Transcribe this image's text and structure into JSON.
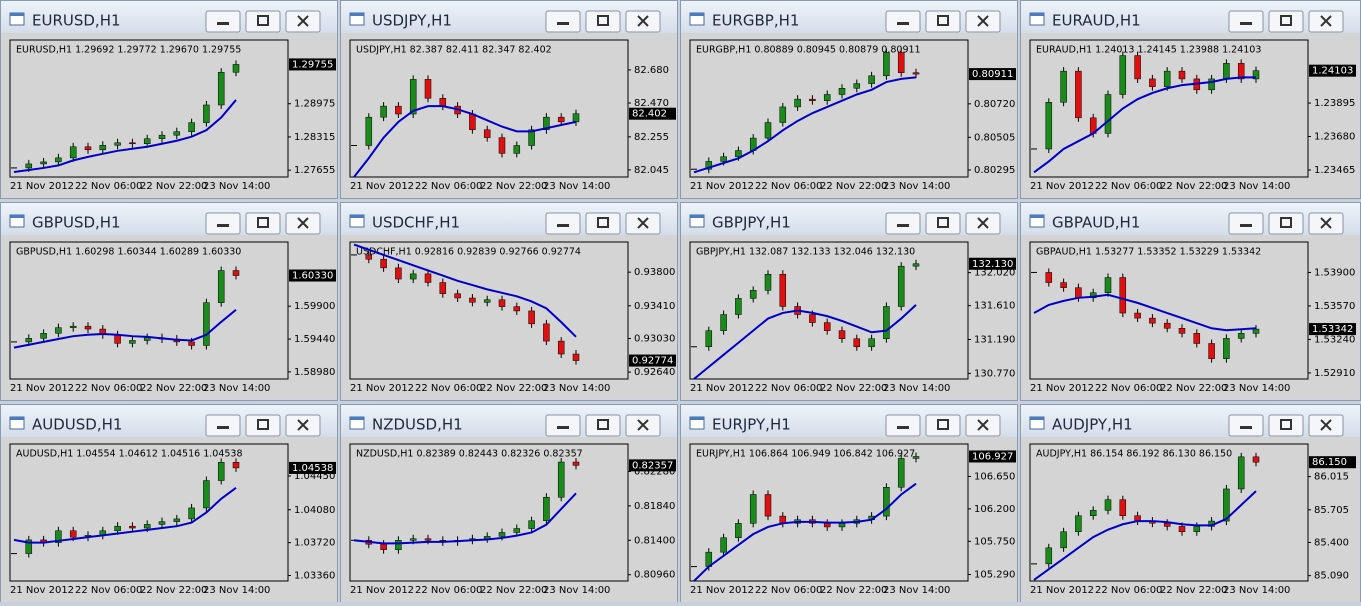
{
  "colors": {
    "up": "#1a8a1a",
    "down": "#e01010",
    "ma": "#0000c8"
  },
  "windows": [
    {
      "title": "EURUSD,H1",
      "info": "EURUSD,H1  1.29692 1.29772 1.29670 1.29755",
      "x_labels": [
        "21 Nov 2012",
        "22 Nov 06:00",
        "22 Nov 22:00",
        "23 Nov 14:00"
      ],
      "ylim": [
        1.2752,
        1.3024
      ],
      "yticks": [
        1.27655,
        1.28315,
        1.28975
      ],
      "current": 1.29755,
      "closes": [
        1.277,
        1.2778,
        1.2782,
        1.279,
        1.2812,
        1.2806,
        1.2815,
        1.282,
        1.2818,
        1.2828,
        1.2835,
        1.2842,
        1.286,
        1.2895,
        1.296,
        1.29755
      ],
      "ma": [
        1.2762,
        1.2766,
        1.277,
        1.2775,
        1.2785,
        1.2792,
        1.2798,
        1.2804,
        1.2808,
        1.2812,
        1.2818,
        1.2824,
        1.2832,
        1.2845,
        1.287,
        1.2905
      ]
    },
    {
      "title": "USDJPY,H1",
      "info": "USDJPY,H1  82.387 82.411 82.347 82.402",
      "x_labels": [
        "21 Nov 2012",
        "22 Nov 06:00",
        "22 Nov 22:00",
        "23 Nov 14:00"
      ],
      "ylim": [
        82.0,
        82.87
      ],
      "yticks": [
        {
          "value": 82.68,
          "label": "82.680"
        },
        {
          "value": 82.47,
          "label": "82.470"
        },
        82.255,
        82.045
      ],
      "current": 82.402,
      "closes": [
        82.2,
        82.38,
        82.45,
        82.4,
        82.62,
        82.5,
        82.45,
        82.4,
        82.3,
        82.25,
        82.15,
        82.2,
        82.3,
        82.38,
        82.35,
        82.402
      ],
      "ma": [
        82.0,
        82.12,
        82.25,
        82.35,
        82.42,
        82.45,
        82.45,
        82.43,
        82.4,
        82.36,
        82.32,
        82.29,
        82.29,
        82.31,
        82.33,
        82.35
      ]
    },
    {
      "title": "EURGBP,H1",
      "info": "EURGBP,H1  0.80889 0.80945 0.80879 0.80911",
      "x_labels": [
        "21 Nov 2012",
        "22 Nov 06:00",
        "22 Nov 22:00",
        "23 Nov 14:00"
      ],
      "ylim": [
        0.8025,
        0.8113
      ],
      "yticks": [
        0.80295,
        0.80505,
        {
          "value": 0.8072,
          "label": "0.80720"
        }
      ],
      "current": 0.80911,
      "closes": [
        0.803,
        0.8035,
        0.8038,
        0.8042,
        0.805,
        0.806,
        0.807,
        0.8075,
        0.8074,
        0.8078,
        0.8082,
        0.8085,
        0.809,
        0.8105,
        0.8092,
        0.80911
      ],
      "ma": [
        0.8028,
        0.8031,
        0.8034,
        0.8037,
        0.8042,
        0.8048,
        0.8055,
        0.8061,
        0.8066,
        0.807,
        0.8074,
        0.8078,
        0.8081,
        0.8086,
        0.8088,
        0.8089
      ]
    },
    {
      "title": "EURAUD,H1",
      "info": "EURAUD,H1  1.24013 1.24145 1.23988 1.24103",
      "x_labels": [
        "21 Nov 2012",
        "22 Nov 06:00",
        "22 Nov 22:00",
        "23 Nov 14:00"
      ],
      "ylim": [
        1.2342,
        1.243
      ],
      "yticks": [
        1.23465,
        {
          "value": 1.2368,
          "label": "1.23680"
        },
        1.23895
      ],
      "current": 1.24103,
      "closes": [
        1.236,
        1.239,
        1.241,
        1.238,
        1.237,
        1.2395,
        1.242,
        1.2405,
        1.24,
        1.241,
        1.2405,
        1.2398,
        1.2405,
        1.2415,
        1.2405,
        1.24103
      ],
      "ma": [
        1.2345,
        1.2352,
        1.236,
        1.2365,
        1.237,
        1.2378,
        1.2386,
        1.2392,
        1.2396,
        1.2399,
        1.2401,
        1.2402,
        1.2403,
        1.2405,
        1.2406,
        1.2406
      ]
    },
    {
      "title": "GBPUSD,H1",
      "info": "GBPUSD,H1  1.60298 1.60344 1.60289 1.60330",
      "x_labels": [
        "21 Nov 2012",
        "22 Nov 06:00",
        "22 Nov 22:00",
        "23 Nov 14:00"
      ],
      "ylim": [
        1.5888,
        1.608
      ],
      "yticks": [
        {
          "value": 1.5898,
          "label": "1.58980"
        },
        {
          "value": 1.5944,
          "label": "1.59440"
        },
        {
          "value": 1.599,
          "label": "1.59900"
        }
      ],
      "current": {
        "value": 1.6033,
        "label": "1.60330"
      },
      "closes": [
        1.594,
        1.5945,
        1.5952,
        1.596,
        1.5962,
        1.5958,
        1.595,
        1.5938,
        1.5942,
        1.5946,
        1.5944,
        1.594,
        1.5935,
        1.5995,
        1.604,
        1.6033
      ],
      "ma": [
        1.5932,
        1.5936,
        1.594,
        1.5944,
        1.5948,
        1.595,
        1.5951,
        1.595,
        1.5948,
        1.5947,
        1.5945,
        1.5943,
        1.5942,
        1.595,
        1.5968,
        1.5985
      ]
    },
    {
      "title": "USDCHF,H1",
      "info": "USDCHF,H1  0.92816 0.92839 0.92766 0.92774",
      "x_labels": [
        "21 Nov 2012",
        "22 Nov 06:00",
        "22 Nov 22:00",
        "23 Nov 14:00"
      ],
      "ylim": [
        0.9256,
        0.9415
      ],
      "yticks": [
        {
          "value": 0.938,
          "label": "0.93800"
        },
        {
          "value": 0.9341,
          "label": "0.93410"
        },
        {
          "value": 0.9303,
          "label": "0.93030"
        },
        {
          "value": 0.9264,
          "label": "0.92640"
        }
      ],
      "current": 0.92774,
      "closes": [
        0.94,
        0.9395,
        0.9385,
        0.9372,
        0.9378,
        0.9368,
        0.9355,
        0.935,
        0.9345,
        0.9348,
        0.934,
        0.9335,
        0.932,
        0.93,
        0.9285,
        0.92774
      ],
      "ma": [
        0.9412,
        0.9406,
        0.94,
        0.9394,
        0.9388,
        0.9382,
        0.9376,
        0.937,
        0.9365,
        0.936,
        0.9356,
        0.9352,
        0.9346,
        0.9338,
        0.9322,
        0.9305
      ]
    },
    {
      "title": "GBPJPY,H1",
      "info": "GBPJPY,H1  132.087 132.133 132.046 132.130",
      "x_labels": [
        "21 Nov 2012",
        "22 Nov 06:00",
        "22 Nov 22:00",
        "23 Nov 14:00"
      ],
      "ylim": [
        130.7,
        132.4
      ],
      "yticks": [
        {
          "value": 132.02,
          "label": "132.020"
        },
        {
          "value": 131.61,
          "label": "131.610"
        },
        {
          "value": 131.19,
          "label": "131.190"
        },
        {
          "value": 130.77,
          "label": "130.770"
        }
      ],
      "current": {
        "value": 132.13,
        "label": "132.130"
      },
      "closes": [
        131.1,
        131.3,
        131.5,
        131.7,
        131.8,
        132.0,
        131.6,
        131.5,
        131.4,
        131.3,
        131.2,
        131.1,
        131.2,
        131.6,
        132.1,
        132.13
      ],
      "ma": [
        130.7,
        130.85,
        131.0,
        131.15,
        131.3,
        131.45,
        131.52,
        131.55,
        131.52,
        131.48,
        131.42,
        131.35,
        131.28,
        131.3,
        131.45,
        131.62
      ]
    },
    {
      "title": "GBPAUD,H1",
      "info": "GBPAUD,H1  1.53277 1.53352 1.53229 1.53342",
      "x_labels": [
        "21 Nov 2012",
        "22 Nov 06:00",
        "22 Nov 22:00",
        "23 Nov 14:00"
      ],
      "ylim": [
        1.5285,
        1.542
      ],
      "yticks": [
        {
          "value": 1.539,
          "label": "1.53900"
        },
        {
          "value": 1.5357,
          "label": "1.53570"
        },
        {
          "value": 1.5324,
          "label": "1.53240"
        },
        {
          "value": 1.5291,
          "label": "1.52910"
        }
      ],
      "current": 1.53342,
      "closes": [
        1.539,
        1.538,
        1.5375,
        1.5365,
        1.537,
        1.5385,
        1.535,
        1.5345,
        1.534,
        1.5335,
        1.533,
        1.532,
        1.5305,
        1.5325,
        1.533,
        1.53342
      ],
      "ma": [
        1.535,
        1.5358,
        1.5362,
        1.5365,
        1.5366,
        1.5368,
        1.5364,
        1.536,
        1.5355,
        1.535,
        1.5345,
        1.534,
        1.5335,
        1.5333,
        1.5334,
        1.5335
      ]
    },
    {
      "title": "AUDUSD,H1",
      "info": "AUDUSD,H1  1.04554 1.04612 1.04516 1.04538",
      "x_labels": [
        "21 Nov 2012",
        "22 Nov 06:00",
        "22 Nov 22:00",
        "23 Nov 14:00"
      ],
      "ylim": [
        1.033,
        1.048
      ],
      "yticks": [
        {
          "value": 1.0336,
          "label": "1.03360"
        },
        {
          "value": 1.0372,
          "label": "1.03720"
        },
        {
          "value": 1.0408,
          "label": "1.04080"
        },
        {
          "value": 1.0445,
          "label": "1.04450"
        }
      ],
      "current": 1.04538,
      "closes": [
        1.036,
        1.0375,
        1.0372,
        1.0385,
        1.0378,
        1.038,
        1.0385,
        1.039,
        1.0388,
        1.0392,
        1.0395,
        1.0398,
        1.041,
        1.044,
        1.046,
        1.04538
      ],
      "ma": [
        1.0375,
        1.0372,
        1.0372,
        1.0374,
        1.0376,
        1.0378,
        1.038,
        1.0382,
        1.0384,
        1.0386,
        1.0388,
        1.039,
        1.0394,
        1.0405,
        1.042,
        1.0432
      ]
    },
    {
      "title": "NZDUSD,H1",
      "info": "NZDUSD,H1  0.82389 0.82443 0.82326 0.82357",
      "x_labels": [
        "21 Nov 2012",
        "22 Nov 06:00",
        "22 Nov 22:00",
        "23 Nov 14:00"
      ],
      "ylim": [
        0.8088,
        0.8263
      ],
      "yticks": [
        {
          "value": 0.8096,
          "label": "0.80960"
        },
        {
          "value": 0.814,
          "label": "0.81400"
        },
        {
          "value": 0.8184,
          "label": "0.81840"
        },
        {
          "value": 0.8228,
          "label": "0.82280"
        }
      ],
      "current": 0.82357,
      "closes": [
        0.814,
        0.8135,
        0.8128,
        0.814,
        0.8142,
        0.814,
        0.8138,
        0.814,
        0.8142,
        0.8145,
        0.815,
        0.8155,
        0.8165,
        0.8195,
        0.824,
        0.82357
      ],
      "ma": [
        0.814,
        0.8138,
        0.8136,
        0.8136,
        0.8137,
        0.8138,
        0.8138,
        0.8139,
        0.814,
        0.8141,
        0.8143,
        0.8146,
        0.815,
        0.816,
        0.818,
        0.82
      ]
    },
    {
      "title": "EURJPY,H1",
      "info": "EURJPY,H1  106.864 106.949 106.842 106.927",
      "x_labels": [
        "21 Nov 2012",
        "22 Nov 06:00",
        "22 Nov 22:00",
        "23 Nov 14:00"
      ],
      "ylim": [
        105.2,
        107.1
      ],
      "yticks": [
        {
          "value": 106.65,
          "label": "106.650"
        },
        {
          "value": 106.2,
          "label": "106.200"
        },
        {
          "value": 105.75,
          "label": "105.750"
        },
        {
          "value": 105.29,
          "label": "105.290"
        }
      ],
      "current": 106.927,
      "closes": [
        105.4,
        105.6,
        105.8,
        106.0,
        106.4,
        106.1,
        106.0,
        106.05,
        106.0,
        105.95,
        106.0,
        106.05,
        106.1,
        106.5,
        106.9,
        106.927
      ],
      "ma": [
        105.2,
        105.4,
        105.55,
        105.7,
        105.85,
        105.95,
        106.0,
        106.02,
        106.02,
        106.01,
        106.01,
        106.02,
        106.05,
        106.2,
        106.4,
        106.55
      ]
    },
    {
      "title": "AUDJPY,H1",
      "info": "AUDJPY,H1  86.154 86.192 86.130 86.150",
      "x_labels": [
        "21 Nov 2012",
        "22 Nov 06:00",
        "22 Nov 22:00",
        "23 Nov 14:00"
      ],
      "ylim": [
        85.04,
        86.32
      ],
      "yticks": [
        86.015,
        85.705,
        {
          "value": 85.4,
          "label": "85.400"
        },
        {
          "value": 85.09,
          "label": "85.090"
        }
      ],
      "current": {
        "value": 86.15,
        "label": "86.150"
      },
      "closes": [
        85.2,
        85.35,
        85.5,
        85.65,
        85.7,
        85.8,
        85.65,
        85.6,
        85.58,
        85.55,
        85.5,
        85.55,
        85.6,
        85.9,
        86.2,
        86.15
      ],
      "ma": [
        85.05,
        85.15,
        85.25,
        85.35,
        85.45,
        85.52,
        85.57,
        85.6,
        85.6,
        85.59,
        85.57,
        85.56,
        85.56,
        85.62,
        85.75,
        85.88
      ]
    }
  ]
}
